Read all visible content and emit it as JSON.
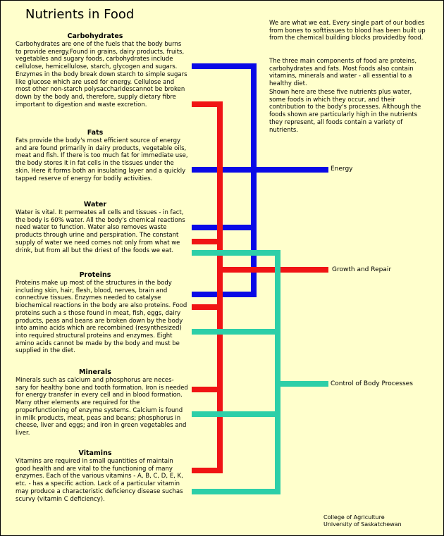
{
  "title": "Nutrients in Food",
  "sections": [
    {
      "heading": "Carbohydrates",
      "body": "Carbohydrates are one of the fuels that the body burns to provide energy.Found in grains, dairy products, fruits, vegetables and sugary foods, carbohydrates include cellulose, hemicellulose, starch, glycogen and sugars. Enzymes in the body break down starch to simple sugars like glucose which are used for energy.  Cellulose and most other non-starch polysaccharidescannot be broken down by the body and, therefore, supply dietary fibre important to digestion and waste excretion."
    },
    {
      "heading": "Fats",
      "body": "Fats provide the body's most efficient source of energy and are found primarily in dairy products, vegetable oils, meat and fish.  If there is too much fat for immediate use, the body stores it in fat cells in the tissues under the skin.  Here it forms both an insulating layer and a quickly tapped reserve of energy for bodily activities."
    },
    {
      "heading": "Water",
      "body": "Water is vital.  It permeates all cells and tissues  - in fact, the body is 60% water.  All the body's chemical reactions need water to function.  Water also removes waste products through urine and perspiration.  The constant supply of water we need comes not only from what we drink, but from all but the driest of the foods we eat."
    },
    {
      "heading": "Proteins",
      "body": "Proteins make up most of the structures in the body including skin, hair, flesh, blood, nerves, brain and connective tissues.  Enzymes needed to catalyse biochemical reactions in the body are also proteins. Food proteins such a s those found in meat, fish, eggs, dairy products, peas and beans are broken down by the body into amino acids  which are recombined (resynthesized) into required structural proteins and enzymes.  Eight amino acids cannot  be made by the body and must be supplied in the diet."
    },
    {
      "heading": "Minerals",
      "body": "Minerals such as calcium and phosphorus are neces- sary for healthy bone and tooth formation.  Iron is needed for energy transfer in every cell and in blood formation.  Many other elements are required for the properfunctioning of enzyme systems.  Calcium is found in milk products, meat, peas and beans; phosphorus in cheese, liver and eggs; and iron in green vegetables and liver."
    },
    {
      "heading": "Vitamins",
      "body": "Vitamins are required in small quantities of maintain good health and are vital to the functioning of many enzymes.  Each of the various vitamins - A, B, C, D, E, K, etc. - has a specific action.  Lack of a particular vitamin may produce a characteristic deficiency disease suchas scurvy (vitamin C deficiency)."
    }
  ],
  "intro": [
    "We are what we eat.  Every single part of our bodies from bones to softtissues to blood has been built up from the chemical building blocks providedby food.",
    "The three main components of food are proteins, carbohydrates and fats. Most foods also contain vitamins, minerals and water - all essential to a healthy diet.",
    "Shown here are these five nutrients plus water, some foods in which they occur, and their contribution to the body's processes.  Although the foods shown are particularly high in the nutrients they represent, all foods contain a variety of nutrients."
  ],
  "functions": {
    "energy": "Energy",
    "growth": "Growth and Repair",
    "control": "Control of Body Processes"
  },
  "credit": {
    "line1": "College of Agriculture",
    "line2": "University of Saskatchewan"
  },
  "colors": {
    "energy": "#0A0AE6",
    "growth": "#F01414",
    "control": "#2DCFA8",
    "background": "#FFFFCC"
  }
}
